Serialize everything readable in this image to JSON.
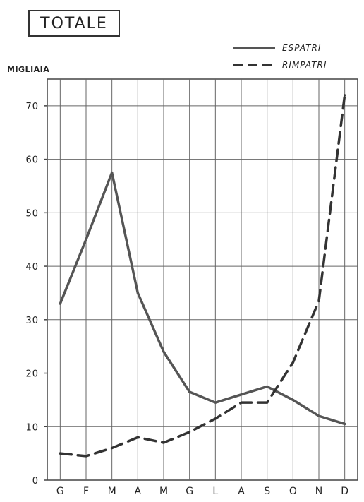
{
  "chart_data": {
    "type": "line",
    "title": "TOTALE",
    "ylabel": "MIGLIAIA",
    "xlabel": "",
    "categories": [
      "G",
      "F",
      "M",
      "A",
      "M",
      "G",
      "L",
      "A",
      "S",
      "O",
      "N",
      "D"
    ],
    "ylim": [
      0,
      75
    ],
    "yticks": [
      0,
      10,
      20,
      30,
      40,
      50,
      60,
      70
    ],
    "grid": true,
    "legend_position": "top-right",
    "series": [
      {
        "name": "ESPATRI",
        "style": "solid",
        "color": "#555555",
        "values": [
          33,
          45,
          57.5,
          35,
          24,
          16.5,
          14.5,
          16,
          17.5,
          15,
          12,
          10.5
        ]
      },
      {
        "name": "RIMPATRI",
        "style": "dashed",
        "color": "#333333",
        "values": [
          5,
          4.5,
          6,
          8,
          7,
          9,
          11.5,
          14.5,
          14.5,
          22,
          33.5,
          72
        ]
      }
    ]
  }
}
